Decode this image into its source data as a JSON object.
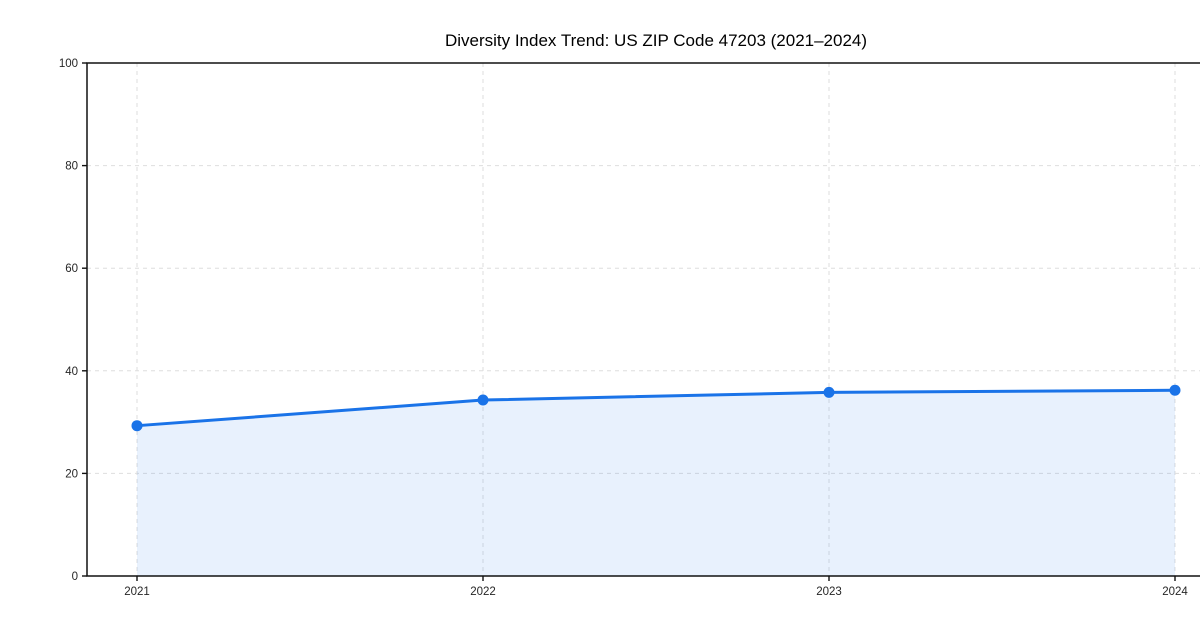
{
  "chart_data": {
    "type": "area",
    "title": "Diversity Index Trend: US ZIP Code 47203 (2021–2024)",
    "categories": [
      "2021",
      "2022",
      "2023",
      "2024"
    ],
    "series": [
      {
        "name": "Diversity Index",
        "values": [
          29.3,
          34.3,
          35.8,
          36.2
        ]
      }
    ],
    "xlabel": "",
    "ylabel": "",
    "ylim": [
      0,
      100
    ],
    "yticks": [
      0,
      20,
      40,
      60,
      80,
      100
    ],
    "grid": true,
    "grid_style": "dashed",
    "legend": false,
    "colors": {
      "line": "#1a73e8",
      "marker": "#1a73e8",
      "fill": "rgba(26,115,232,0.10)",
      "grid": "#dedede",
      "spine": "#111111",
      "tick_label": "#262626",
      "title": "#000000",
      "background": "#ffffff"
    }
  }
}
